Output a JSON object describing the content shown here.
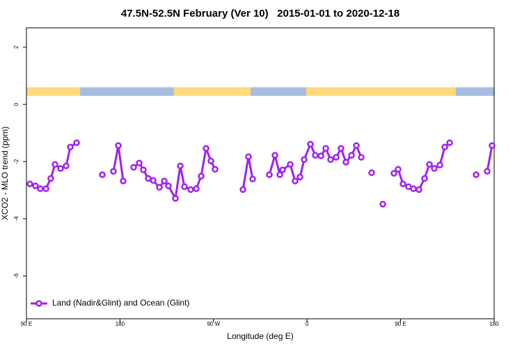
{
  "chart_data": {
    "type": "line",
    "title": "47.5N-52.5N February (Ver 10)   2015-01-01 to 2020-12-18",
    "x_label": "Longitude (deg E)",
    "y_label": "XCO2 - MLO trend (ppm)",
    "xlim": [
      90,
      540
    ],
    "ylim": [
      -7.5,
      2.68
    ],
    "xticks": [
      {
        "value": 90,
        "label": "90 E"
      },
      180,
      {
        "value": 270,
        "label": "90 W"
      },
      {
        "value": 360,
        "label": "0"
      },
      {
        "value": 450,
        "label": "90 E"
      },
      {
        "value": 540,
        "label": "180"
      }
    ],
    "yticks": [
      2,
      0,
      -2,
      -4,
      -6
    ],
    "legend": "bottom-left",
    "band": {
      "ymin": 0.3,
      "ymax": 0.6,
      "segments": [
        {
          "start": 90,
          "end": 141.6,
          "color": "#ffd97a"
        },
        {
          "start": 141.6,
          "end": 232,
          "color": "#a7bde0"
        },
        {
          "start": 232,
          "end": 305.6,
          "color": "#ffd97a"
        },
        {
          "start": 305.6,
          "end": 359.2,
          "color": "#a7bde0"
        },
        {
          "start": 359.2,
          "end": 503.2,
          "color": "#ffd97a"
        },
        {
          "start": 503.2,
          "end": 540,
          "color": "#a7bde0"
        }
      ]
    },
    "series": [
      {
        "name": "Land (Nadir&Glint) and Ocean (Glint)",
        "color": "#a020f0",
        "x": [
          93.3,
          98.7,
          103.4,
          108.8,
          113.4,
          117.5,
          122.8,
          128.2,
          132.2,
          138.2,
          null,
          163.0,
          null,
          173.7,
          178.4,
          183.1,
          null,
          193.1,
          198.5,
          202.5,
          207.2,
          211.9,
          217.9,
          222.6,
          226.6,
          233.3,
          238.0,
          242.0,
          248.0,
          253.4,
          258.1,
          262.8,
          267.5,
          271.5,
          null,
          298.3,
          303.6,
          307.6,
          null,
          323.7,
          329.1,
          333.8,
          336.4,
          343.8,
          348.5,
          353.2,
          357.2,
          363.2,
          367.9,
          373.3,
          378.0,
          382.6,
          388.0,
          392.7,
          397.4,
          402.7,
          407.4,
          412.1,
          null,
          422.1,
          null,
          432.9,
          null,
          443.6,
          447.6,
          452.3,
          457.6,
          462.3,
          467.7,
          473.0,
          477.7,
          482.4,
          487.8,
          492.5,
          497.2,
          null,
          522.6,
          null,
          533.3,
          538.0
        ],
        "values": [
          -2.78,
          -2.85,
          -2.95,
          -2.95,
          -2.59,
          -2.1,
          -2.24,
          -2.15,
          -1.49,
          -1.34,
          null,
          -2.46,
          null,
          -2.34,
          -1.44,
          -2.68,
          null,
          -2.2,
          -2.05,
          -2.29,
          -2.59,
          -2.66,
          -2.9,
          -2.68,
          -2.85,
          -3.29,
          -2.15,
          -2.88,
          -2.98,
          -2.95,
          -2.51,
          -1.54,
          -1.98,
          -2.27,
          null,
          -2.98,
          -1.83,
          -2.61,
          null,
          -2.46,
          -1.78,
          -2.46,
          -2.29,
          -2.1,
          -2.68,
          -2.54,
          -1.93,
          -1.39,
          -1.78,
          -1.8,
          -1.54,
          -1.93,
          -1.85,
          -1.54,
          -2.02,
          -1.78,
          -1.44,
          -1.85,
          null,
          -2.39,
          null,
          -3.49,
          null,
          -2.41,
          -2.27,
          -2.78,
          -2.88,
          -2.95,
          -2.98,
          -2.59,
          -2.1,
          -2.24,
          -2.12,
          -1.49,
          -1.34,
          null,
          -2.46,
          null,
          -2.34,
          -1.44
        ]
      }
    ]
  }
}
